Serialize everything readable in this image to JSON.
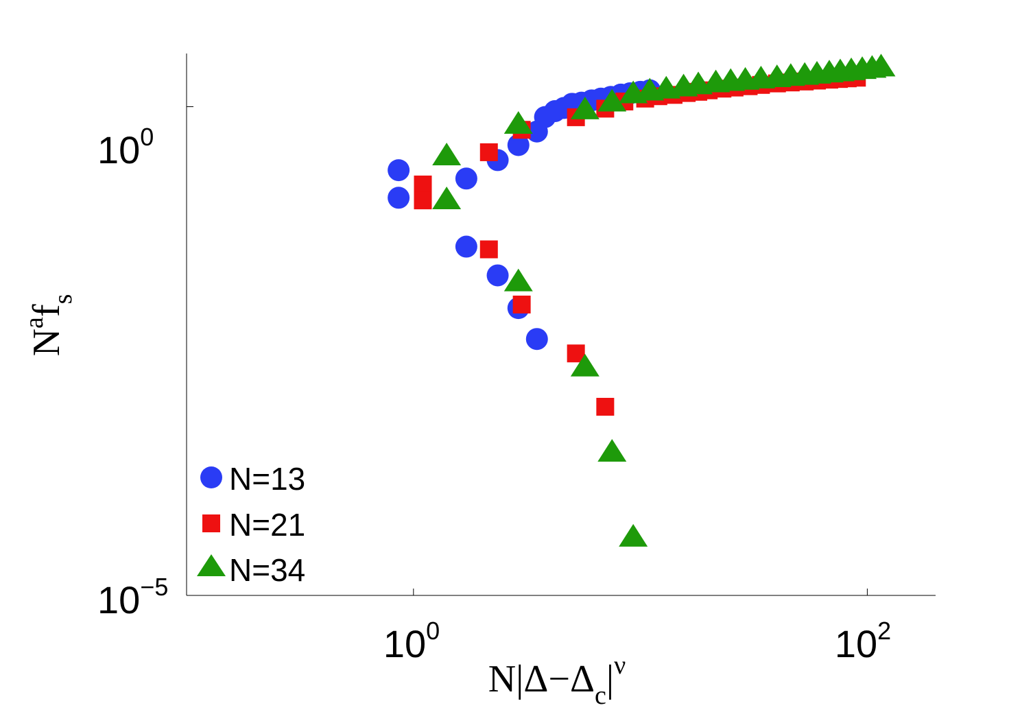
{
  "chart_data": {
    "type": "scatter",
    "xscale": "log",
    "yscale": "log",
    "xlim": [
      0.1,
      200
    ],
    "ylim": [
      1e-05,
      3.5
    ],
    "xlabel": {
      "base": "N|Δ−Δ",
      "sub": "c",
      "after": "|",
      "sup": "ν"
    },
    "ylabel": {
      "base": "N",
      "sup": "a",
      "mid": "f",
      "sub": "s"
    },
    "xticks": [
      {
        "value": 1,
        "base": "10",
        "exp": "0"
      },
      {
        "value": 100,
        "base": "10",
        "exp": "2"
      }
    ],
    "yticks": [
      {
        "value": 1,
        "base": "10",
        "exp": "0"
      },
      {
        "value": 1e-05,
        "base": "10",
        "exp": "−5"
      }
    ],
    "legend_position": "bottom-left",
    "series": [
      {
        "name": "N=13",
        "marker": "circle",
        "color": "#2a3cf5",
        "points": [
          [
            0.86,
            0.224
          ],
          [
            1.71,
            0.184
          ],
          [
            2.35,
            0.284
          ],
          [
            2.9,
            0.405
          ],
          [
            3.5,
            0.557
          ],
          [
            3.8,
            0.783
          ],
          [
            4.2,
            0.9
          ],
          [
            4.6,
            0.97
          ],
          [
            5.0,
            1.07
          ],
          [
            5.5,
            1.1
          ],
          [
            6.1,
            1.16
          ],
          [
            6.7,
            1.21
          ],
          [
            7.4,
            1.26
          ],
          [
            8.2,
            1.33
          ],
          [
            9.0,
            1.37
          ],
          [
            10.0,
            1.42
          ],
          [
            11.0,
            1.47
          ],
          [
            0.86,
            0.117
          ],
          [
            1.71,
            0.037
          ],
          [
            2.35,
            0.0188
          ],
          [
            2.9,
            0.0087
          ],
          [
            3.5,
            0.0042
          ]
        ]
      },
      {
        "name": "N=21",
        "marker": "square",
        "color": "#ee1111",
        "points": [
          [
            1.1,
            0.16
          ],
          [
            2.15,
            0.342
          ],
          [
            3.0,
            0.58
          ],
          [
            5.2,
            0.78
          ],
          [
            7.0,
            0.955
          ],
          [
            8.5,
            1.13
          ],
          [
            10.5,
            1.21
          ],
          [
            12.0,
            1.28
          ],
          [
            14.0,
            1.32
          ],
          [
            16.0,
            1.38
          ],
          [
            18.0,
            1.42
          ],
          [
            20.0,
            1.47
          ],
          [
            23.0,
            1.53
          ],
          [
            26.0,
            1.57
          ],
          [
            30.0,
            1.62
          ],
          [
            34.0,
            1.67
          ],
          [
            40.0,
            1.73
          ],
          [
            46.0,
            1.77
          ],
          [
            53.0,
            1.81
          ],
          [
            60.0,
            1.85
          ],
          [
            68.0,
            1.89
          ],
          [
            75.0,
            1.92
          ],
          [
            82.0,
            1.95
          ],
          [
            90.0,
            1.98
          ],
          [
            1.1,
            0.11
          ],
          [
            2.15,
            0.0347
          ],
          [
            3.0,
            0.00946
          ],
          [
            5.2,
            0.00299
          ],
          [
            7.0,
            0.000851
          ]
        ]
      },
      {
        "name": "N=34",
        "marker": "triangle",
        "color": "#1e9a0a",
        "points": [
          [
            1.4,
            0.315
          ],
          [
            2.9,
            0.662
          ],
          [
            5.7,
            0.933
          ],
          [
            7.5,
            1.12
          ],
          [
            9.3,
            1.36
          ],
          [
            11.0,
            1.45
          ],
          [
            13.0,
            1.52
          ],
          [
            15.5,
            1.6
          ],
          [
            18.0,
            1.68
          ],
          [
            21.5,
            1.76
          ],
          [
            25.0,
            1.82
          ],
          [
            29.0,
            1.87
          ],
          [
            34.0,
            1.93
          ],
          [
            40.0,
            1.99
          ],
          [
            46.0,
            2.05
          ],
          [
            53.0,
            2.1
          ],
          [
            60.0,
            2.16
          ],
          [
            68.0,
            2.22
          ],
          [
            76.0,
            2.28
          ],
          [
            85.0,
            2.34
          ],
          [
            95.0,
            2.41
          ],
          [
            105.0,
            2.48
          ],
          [
            115.0,
            2.56
          ],
          [
            1.4,
            0.112
          ],
          [
            2.9,
            0.0162
          ],
          [
            5.7,
            0.00218
          ],
          [
            7.5,
            0.000293
          ],
          [
            9.3,
            3.96e-05
          ]
        ]
      }
    ]
  }
}
